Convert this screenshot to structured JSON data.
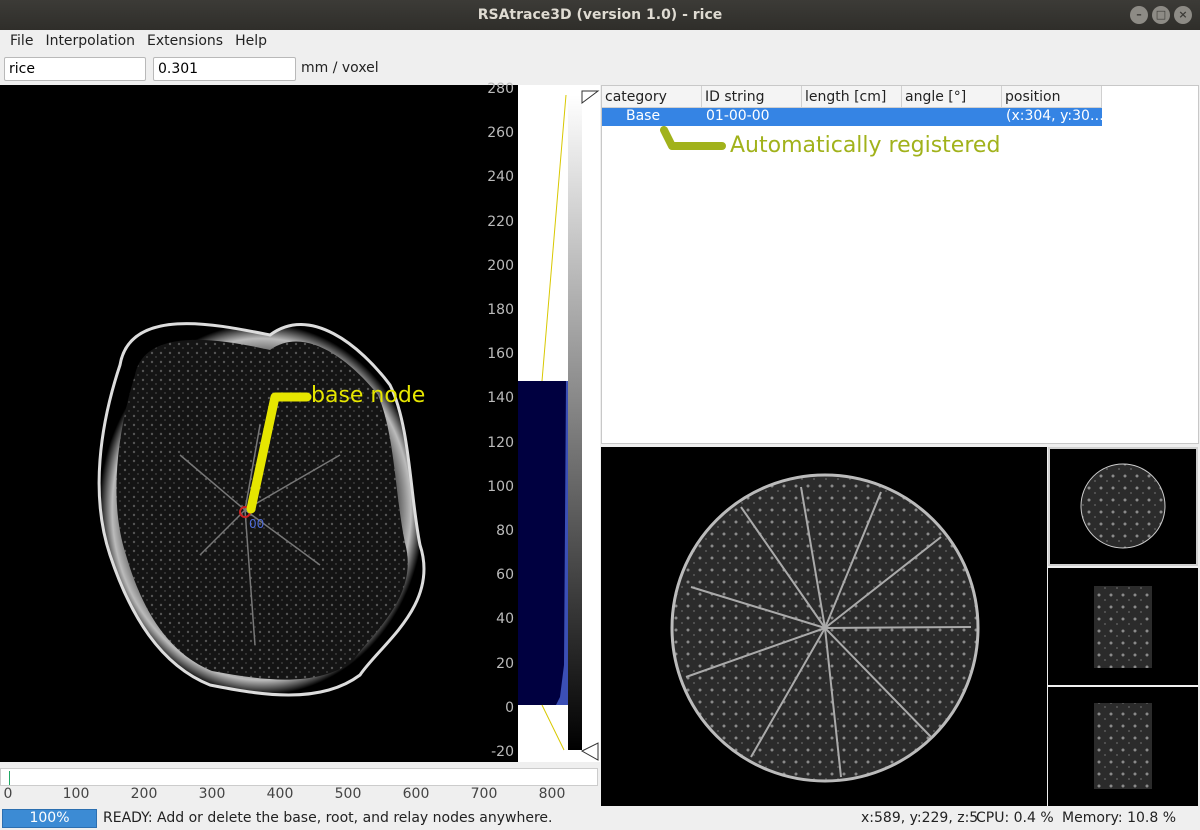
{
  "window": {
    "title": "RSAtrace3D (version 1.0) - rice"
  },
  "menu": {
    "file": "File",
    "interpolation": "Interpolation",
    "extensions": "Extensions",
    "help": "Help"
  },
  "toolbar": {
    "name_value": "rice",
    "scale_value": "0.301",
    "unit_label": "mm / voxel"
  },
  "left_viewer": {
    "base_node_id": "00",
    "annotation": "base node",
    "yaxis_ticks": [
      "280",
      "260",
      "240",
      "220",
      "200",
      "180",
      "160",
      "140",
      "120",
      "100",
      "80",
      "60",
      "40",
      "20",
      "0",
      "-20"
    ],
    "xaxis_ticks": [
      "0",
      "100",
      "200",
      "300",
      "400",
      "500",
      "600",
      "700",
      "800"
    ]
  },
  "table": {
    "columns": [
      "category",
      "ID string",
      "length [cm]",
      "angle [°]",
      "position"
    ],
    "rows": [
      {
        "category": "Base",
        "id": "01-00-00",
        "length": "",
        "angle": "",
        "position": "(x:304, y:30…"
      }
    ],
    "annotation": "Automatically registered"
  },
  "status": {
    "progress_label": "100%",
    "progress_value": 1.0,
    "message": "READY: Add or delete the base, root, and relay nodes anywhere.",
    "coords": "x:589, y:229, z:5",
    "cpu": "CPU: 0.4 %",
    "memory": "Memory: 10.8 %"
  },
  "colors": {
    "selection": "#3584e4",
    "annotation_yellow": "#e6e600",
    "annotation_olive": "#a1b21b",
    "histogram_fill": "#000040"
  }
}
